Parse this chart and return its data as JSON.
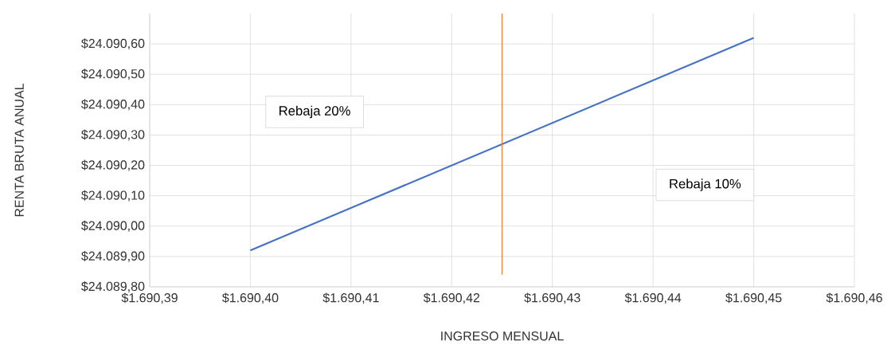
{
  "chart_data": {
    "type": "line",
    "xlabel": "INGRESO MENSUAL",
    "ylabel": "RENTA BRUTA ANUAL",
    "annotations": [
      "Rebaja 20%",
      "Rebaja 10%"
    ],
    "series": [
      {
        "x": [
          1690.4,
          1690.45
        ],
        "values": [
          24089.92,
          24090.62
        ],
        "color": "#4472c4"
      },
      {
        "x": [
          1690.425,
          1690.425
        ],
        "values": [
          24090.7,
          24089.84
        ],
        "color": "#ed7d31"
      }
    ],
    "xlim": [
      1690.39,
      1690.46
    ],
    "xticks": [
      {
        "value": 1690.39,
        "label": "$1.690,39"
      },
      {
        "value": 1690.4,
        "label": "$1.690,40"
      },
      {
        "value": 1690.41,
        "label": "$1.690,41"
      },
      {
        "value": 1690.42,
        "label": "$1.690,42"
      },
      {
        "value": 1690.43,
        "label": "$1.690,43"
      },
      {
        "value": 1690.44,
        "label": "$1.690,44"
      },
      {
        "value": 1690.45,
        "label": "$1.690,45"
      },
      {
        "value": 1690.46,
        "label": "$1.690,46"
      }
    ],
    "ylim": [
      24089.8,
      24090.7
    ],
    "yticks": [
      {
        "value": 24089.8,
        "label": "$24.089,80"
      },
      {
        "value": 24089.9,
        "label": "$24.089,90"
      },
      {
        "value": 24090.0,
        "label": "$24.090,00"
      },
      {
        "value": 24090.1,
        "label": "$24.090,10"
      },
      {
        "value": 24090.2,
        "label": "$24.090,20"
      },
      {
        "value": 24090.3,
        "label": "$24.090,30"
      },
      {
        "value": 24090.4,
        "label": "$24.090,40"
      },
      {
        "value": 24090.5,
        "label": "$24.090,50"
      },
      {
        "value": 24090.6,
        "label": "$24.090,60"
      }
    ],
    "grid": true,
    "line_style": "solid"
  }
}
